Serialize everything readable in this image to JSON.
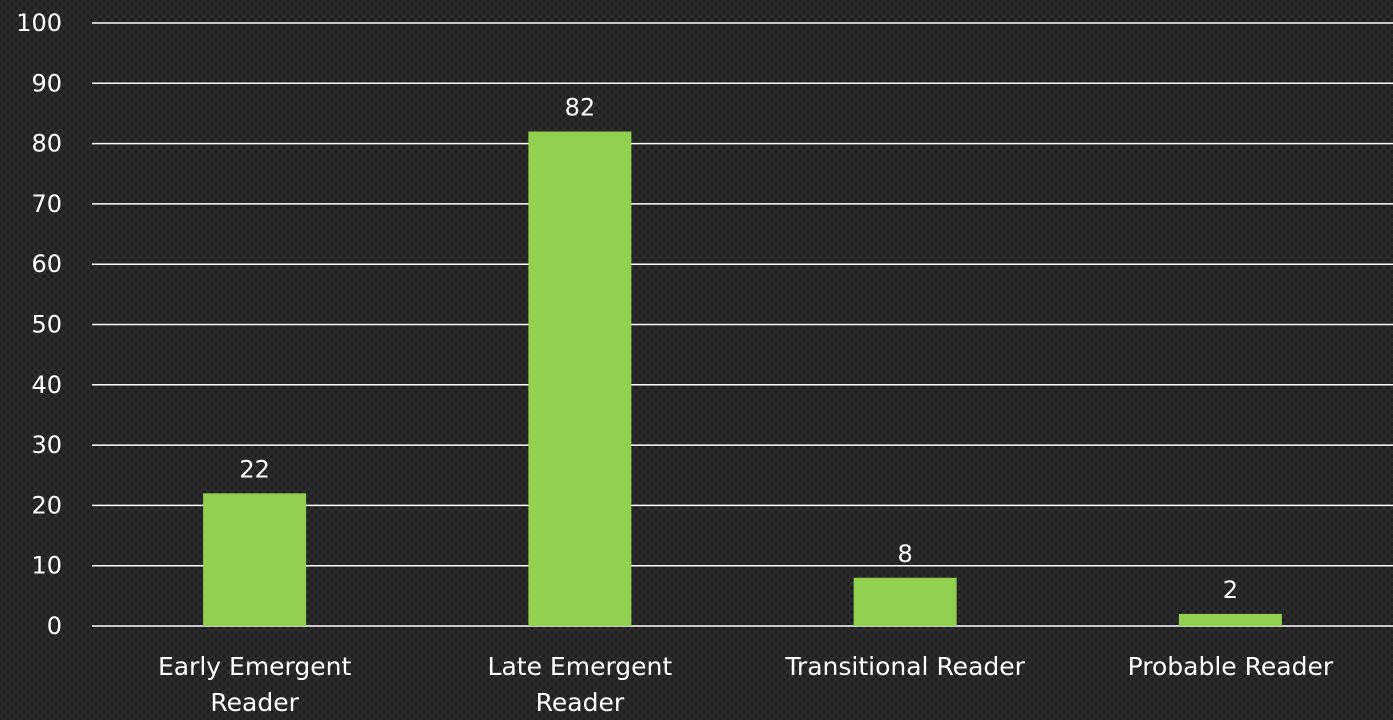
{
  "chart_data": {
    "type": "bar",
    "categories": [
      [
        "Early Emergent",
        "Reader"
      ],
      [
        "Late Emergent",
        "Reader"
      ],
      [
        "Transitional Reader"
      ],
      [
        "Probable Reader"
      ]
    ],
    "values": [
      22,
      82,
      8,
      2
    ],
    "data_labels": [
      "22",
      "82",
      "8",
      "2"
    ],
    "ylim": [
      0,
      100
    ],
    "yticks": [
      0,
      10,
      20,
      30,
      40,
      50,
      60,
      70,
      80,
      90,
      100
    ],
    "grid": true,
    "legend": "none",
    "colors": {
      "bar": "#92d050",
      "grid": "#ffffff",
      "text": "#ffffff"
    }
  }
}
